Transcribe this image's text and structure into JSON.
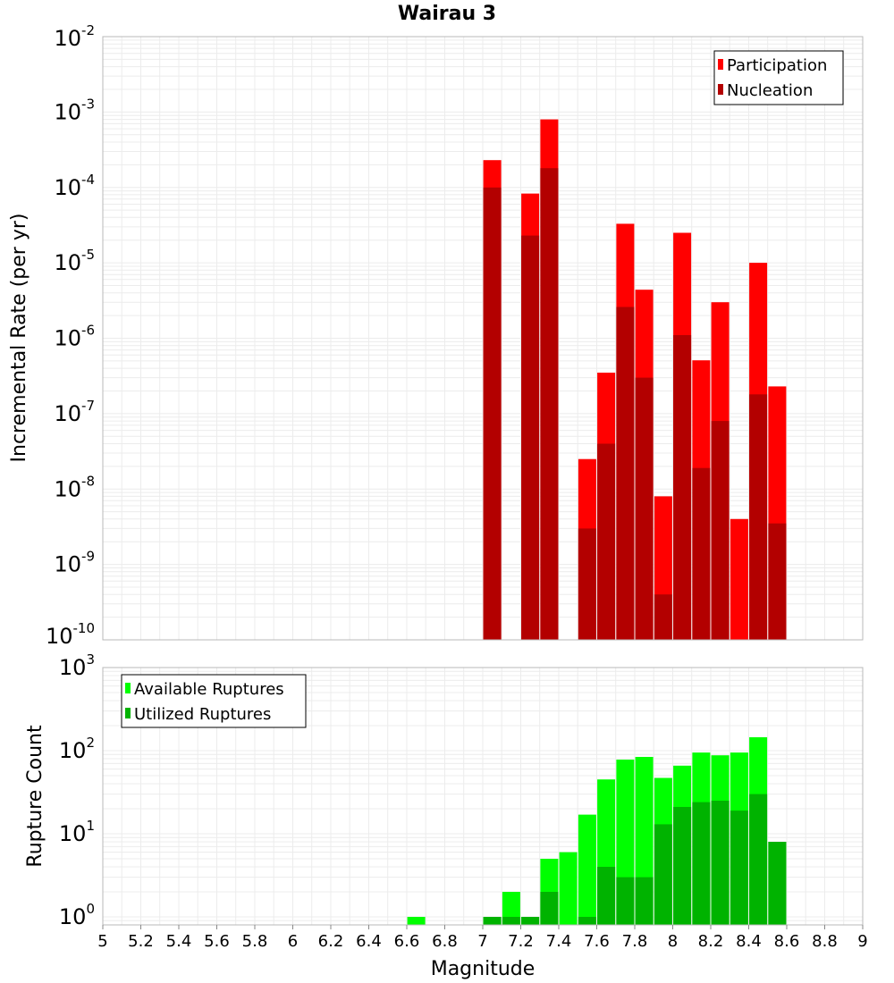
{
  "chart_data": [
    {
      "type": "bar",
      "title": "Wairau 3",
      "ylabel": "Incremental Rate (per yr)",
      "xlabel": "",
      "xlim": [
        5,
        9
      ],
      "ylim": [
        1e-10,
        0.01
      ],
      "yscale": "log",
      "ytick_exponents": [
        "-2",
        "-3",
        "-4",
        "-5",
        "-6",
        "-7",
        "-8",
        "-9",
        "-10"
      ],
      "ytick_base": "10",
      "grid": true,
      "legend_position": "top-right",
      "series": [
        {
          "name": "Participation",
          "color": "#ff0000",
          "x": [
            7.05,
            7.25,
            7.35,
            7.55,
            7.65,
            7.75,
            7.85,
            7.95,
            8.05,
            8.15,
            8.25,
            8.35,
            8.45,
            8.55
          ],
          "values": [
            0.00023,
            8.3e-05,
            0.0008,
            2.5e-08,
            3.5e-07,
            3.3e-05,
            4.4e-06,
            8e-09,
            2.5e-05,
            5.1e-07,
            3e-06,
            4e-09,
            1e-05,
            2.3e-07
          ]
        },
        {
          "name": "Nucleation",
          "color": "#b30000",
          "x": [
            7.05,
            7.25,
            7.35,
            7.55,
            7.65,
            7.75,
            7.85,
            7.95,
            8.05,
            8.15,
            8.25,
            8.35,
            8.45,
            8.55
          ],
          "values": [
            0.0001,
            2.3e-05,
            0.00018,
            3e-09,
            4e-08,
            2.6e-06,
            3e-07,
            4e-10,
            1.1e-06,
            1.9e-08,
            8e-08,
            1e-10,
            1.8e-07,
            3.5e-09
          ]
        }
      ]
    },
    {
      "type": "bar",
      "title": "",
      "xlabel": "Magnitude",
      "ylabel": "Rupture Count",
      "xlim": [
        5,
        9
      ],
      "ylim": [
        0.8,
        1000
      ],
      "yscale": "log",
      "xticks": [
        "5",
        "5.2",
        "5.4",
        "5.6",
        "5.8",
        "6",
        "6.2",
        "6.4",
        "6.6",
        "6.8",
        "7",
        "7.2",
        "7.4",
        "7.6",
        "7.8",
        "8",
        "8.2",
        "8.4",
        "8.6",
        "8.8",
        "9"
      ],
      "ytick_exponents": [
        "3",
        "2",
        "1",
        "0"
      ],
      "ytick_base": "10",
      "grid": true,
      "legend_position": "top-left",
      "series": [
        {
          "name": "Available Ruptures",
          "color": "#00ff00",
          "x": [
            6.65,
            7.05,
            7.15,
            7.25,
            7.35,
            7.45,
            7.55,
            7.65,
            7.75,
            7.85,
            7.95,
            8.05,
            8.15,
            8.25,
            8.35,
            8.45,
            8.55
          ],
          "values": [
            1,
            1,
            2,
            1,
            5,
            6,
            17,
            45,
            78,
            84,
            47,
            66,
            95,
            88,
            95,
            145,
            8
          ]
        },
        {
          "name": "Utilized Ruptures",
          "color": "#00b300",
          "x": [
            6.65,
            7.05,
            7.15,
            7.25,
            7.35,
            7.45,
            7.55,
            7.65,
            7.75,
            7.85,
            7.95,
            8.05,
            8.15,
            8.25,
            8.35,
            8.45,
            8.55
          ],
          "values": [
            0,
            1,
            1,
            1,
            2,
            0,
            1,
            4,
            3,
            3,
            13,
            21,
            24,
            25,
            19,
            30,
            8
          ]
        }
      ]
    }
  ]
}
